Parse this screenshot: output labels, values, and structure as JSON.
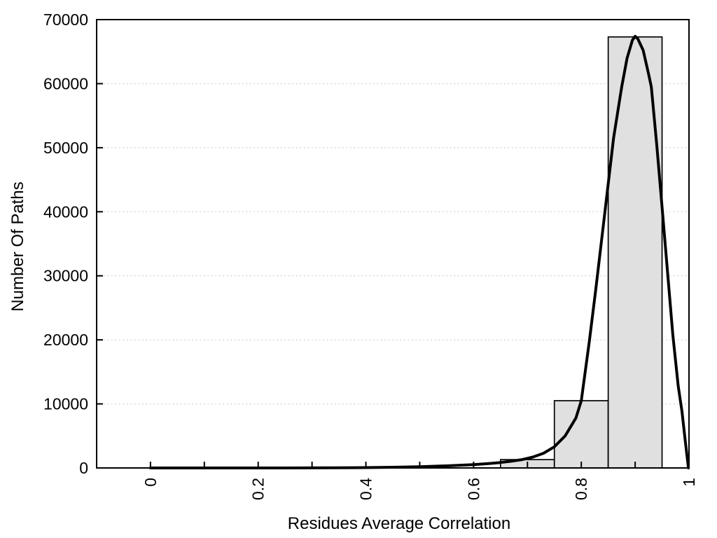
{
  "figure": {
    "background": "#ffffff",
    "title": ""
  },
  "chart_data": {
    "type": "bar",
    "subtype": "histogram-with-fit-curve",
    "title": "",
    "xlabel": "Residues Average Correlation",
    "ylabel": "Number Of Paths",
    "xlim": [
      -0.1,
      1.0
    ],
    "ylim": [
      0,
      70000
    ],
    "grid": {
      "horizontal": true,
      "vertical": false,
      "style": "dotted"
    },
    "legend": "none",
    "x_ticks": [
      0,
      0.1,
      0.2,
      0.3,
      0.4,
      0.5,
      0.6,
      0.7,
      0.8,
      0.9,
      1.0
    ],
    "x_tick_labels": [
      {
        "value": 0,
        "label": "0"
      },
      {
        "value": 0.2,
        "label": "0.2"
      },
      {
        "value": 0.4,
        "label": "0.4"
      },
      {
        "value": 0.6,
        "label": "0.6"
      },
      {
        "value": 0.8,
        "label": "0.8"
      },
      {
        "value": 1,
        "label": "1"
      }
    ],
    "x_tick_label_rotation_deg": -90,
    "y_ticks": [
      0,
      10000,
      20000,
      30000,
      40000,
      50000,
      60000,
      70000
    ],
    "y_tick_labels": [
      {
        "value": 0,
        "label": "0"
      },
      {
        "value": 10000,
        "label": "10000"
      },
      {
        "value": 20000,
        "label": "20000"
      },
      {
        "value": 30000,
        "label": "30000"
      },
      {
        "value": 40000,
        "label": "40000"
      },
      {
        "value": 50000,
        "label": "50000"
      },
      {
        "value": 60000,
        "label": "60000"
      },
      {
        "value": 70000,
        "label": "70000"
      }
    ],
    "y_gridlines": [
      10000,
      20000,
      30000,
      40000,
      50000,
      60000
    ],
    "bars": [
      {
        "bin_start": 0.65,
        "bin_end": 0.75,
        "count": 1300
      },
      {
        "bin_start": 0.75,
        "bin_end": 0.85,
        "count": 10500
      },
      {
        "bin_start": 0.85,
        "bin_end": 0.95,
        "count": 67300
      }
    ],
    "fit_curve": {
      "name": "density-fit",
      "peak": {
        "x": 0.9,
        "y": 67400
      },
      "points": [
        [
          0.0,
          0
        ],
        [
          0.05,
          0
        ],
        [
          0.1,
          0
        ],
        [
          0.15,
          0
        ],
        [
          0.2,
          0
        ],
        [
          0.25,
          5
        ],
        [
          0.3,
          15
        ],
        [
          0.35,
          30
        ],
        [
          0.4,
          60
        ],
        [
          0.45,
          110
        ],
        [
          0.5,
          200
        ],
        [
          0.55,
          330
        ],
        [
          0.6,
          520
        ],
        [
          0.63,
          700
        ],
        [
          0.65,
          850
        ],
        [
          0.67,
          1050
        ],
        [
          0.69,
          1300
        ],
        [
          0.71,
          1700
        ],
        [
          0.73,
          2300
        ],
        [
          0.75,
          3300
        ],
        [
          0.77,
          5000
        ],
        [
          0.79,
          7800
        ],
        [
          0.8,
          10500
        ],
        [
          0.815,
          19800
        ],
        [
          0.827,
          27900
        ],
        [
          0.843,
          39400
        ],
        [
          0.86,
          51500
        ],
        [
          0.875,
          59500
        ],
        [
          0.885,
          64000
        ],
        [
          0.895,
          66800
        ],
        [
          0.9,
          67400
        ],
        [
          0.905,
          67000
        ],
        [
          0.915,
          65200
        ],
        [
          0.925,
          61500
        ],
        [
          0.93,
          59500
        ],
        [
          0.94,
          50500
        ],
        [
          0.95,
          40800
        ],
        [
          0.96,
          30800
        ],
        [
          0.97,
          20800
        ],
        [
          0.98,
          12800
        ],
        [
          0.987,
          8800
        ],
        [
          0.993,
          4300
        ],
        [
          0.999,
          0
        ]
      ]
    },
    "colors": {
      "bar_fill": "#e0e0e0",
      "bar_border": "#000000",
      "curve": "#000000",
      "grid": "#bbbbbb",
      "axis": "#000000",
      "text": "#000000"
    }
  }
}
